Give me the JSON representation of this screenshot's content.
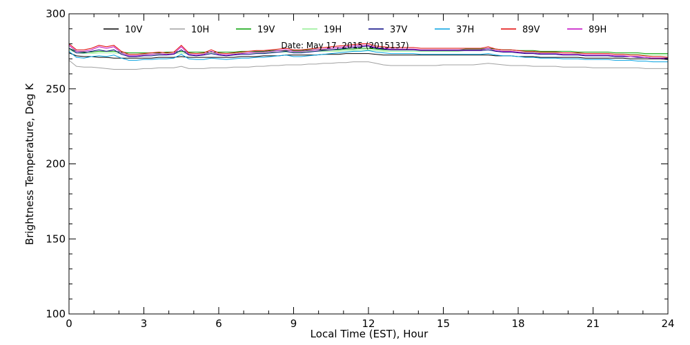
{
  "chart_data": {
    "type": "line",
    "annotation": "Date: May 17, 2015 (2015137)",
    "xlabel": "Local Time (EST), Hour",
    "ylabel": "Brightness Temperature, Deg K",
    "xlim": [
      0,
      24
    ],
    "ylim": [
      100,
      300
    ],
    "xticks": [
      0,
      3,
      6,
      9,
      12,
      15,
      18,
      21,
      24
    ],
    "yticks": [
      100,
      150,
      200,
      250,
      300
    ],
    "grid": false,
    "legend_position": "top",
    "x": [
      0,
      0.3,
      0.6,
      0.9,
      1.2,
      1.5,
      1.8,
      2.1,
      2.4,
      2.7,
      3.0,
      3.3,
      3.6,
      3.9,
      4.2,
      4.5,
      4.8,
      5.1,
      5.4,
      5.7,
      6.0,
      6.3,
      6.6,
      6.9,
      7.2,
      7.5,
      7.8,
      8.1,
      8.4,
      8.7,
      9.0,
      9.3,
      9.6,
      9.9,
      10.2,
      10.5,
      10.8,
      11.1,
      11.4,
      11.7,
      12.0,
      12.3,
      12.6,
      12.9,
      13.2,
      13.5,
      13.8,
      14.1,
      14.4,
      14.7,
      15.0,
      15.3,
      15.6,
      15.9,
      16.2,
      16.5,
      16.8,
      17.1,
      17.4,
      17.7,
      18.0,
      18.3,
      18.6,
      18.9,
      19.2,
      19.5,
      19.8,
      20.1,
      20.4,
      20.7,
      21.0,
      21.3,
      21.6,
      21.9,
      22.2,
      22.5,
      22.8,
      23.1,
      23.4,
      23.7,
      24.0
    ],
    "series": [
      {
        "name": "10V",
        "color": "#000000",
        "values": [
          274,
          272,
          271.5,
          271.5,
          271,
          271,
          270.5,
          270.5,
          270.5,
          270.5,
          270.5,
          270.5,
          271,
          271,
          271,
          271.5,
          271,
          271,
          271,
          271,
          271,
          271,
          271,
          271.5,
          271.5,
          271.5,
          272,
          272,
          272,
          272.5,
          272.5,
          272.5,
          272.5,
          272.5,
          273,
          273,
          273,
          273.5,
          273.5,
          273.5,
          273.5,
          273,
          272.5,
          272.5,
          272.5,
          272.5,
          272.5,
          272.5,
          272.5,
          272.5,
          272.5,
          272.5,
          272.5,
          272.5,
          272.5,
          272.5,
          272.5,
          272,
          272,
          272,
          271.5,
          271.5,
          271.5,
          271,
          271,
          271,
          271,
          271,
          271,
          270.5,
          270.5,
          270.5,
          270.5,
          270.5,
          270.5,
          270,
          270,
          270,
          270,
          270,
          269.5
        ]
      },
      {
        "name": "10H",
        "color": "#a0a0a0",
        "values": [
          269,
          265,
          264.5,
          264.5,
          264,
          263.5,
          263,
          263,
          263,
          263,
          263.5,
          263.5,
          264,
          264,
          264,
          265,
          263.5,
          263.5,
          263.5,
          264,
          264,
          264,
          264.5,
          264.5,
          264.5,
          265,
          265,
          265.5,
          265.5,
          266,
          266,
          266,
          266.5,
          266.5,
          267,
          267,
          267.5,
          267.5,
          268,
          268,
          268,
          267,
          266,
          265.5,
          265.5,
          265.5,
          265.5,
          265.5,
          265.5,
          265.5,
          266,
          266,
          266,
          266,
          266,
          266.5,
          267,
          266.5,
          266,
          265.5,
          265.5,
          265.5,
          265,
          265,
          265,
          265,
          264.5,
          264.5,
          264.5,
          264.5,
          264,
          264,
          264,
          264,
          264,
          264,
          264,
          263.5,
          263.5,
          263.5,
          263.5
        ]
      },
      {
        "name": "19V",
        "color": "#00a000",
        "values": [
          277,
          275,
          274.5,
          274.5,
          275,
          275,
          275,
          274.5,
          274,
          274,
          274,
          274,
          274,
          274.5,
          274.5,
          275,
          274.5,
          274.5,
          274.5,
          274.5,
          274.5,
          274.5,
          274.5,
          275,
          275,
          275,
          275,
          275.5,
          275.5,
          275.5,
          275.5,
          275.5,
          276,
          276,
          276,
          276,
          276,
          276.5,
          276.5,
          277,
          277,
          276.5,
          276,
          276,
          276,
          276,
          276,
          276,
          276,
          276,
          276,
          276,
          276,
          276.5,
          276.5,
          276.5,
          277,
          276.5,
          276,
          276,
          275.5,
          275.5,
          275.5,
          275,
          275,
          275,
          275,
          275,
          274.5,
          274.5,
          274.5,
          274.5,
          274.5,
          274,
          274,
          274,
          274,
          273.5,
          273.5,
          273.5,
          273.5
        ]
      },
      {
        "name": "19H",
        "color": "#90ee90",
        "values": [
          276,
          274,
          273.5,
          273.5,
          274,
          274,
          274,
          273.5,
          273,
          273,
          273,
          273,
          273,
          273.5,
          273.5,
          274,
          273.5,
          273.5,
          273.5,
          273.5,
          273.5,
          273.5,
          273.5,
          274,
          274,
          274,
          274,
          274.5,
          274.5,
          274.5,
          274.5,
          274.5,
          275,
          275,
          275,
          275,
          275,
          275.5,
          275.5,
          276,
          276,
          275.5,
          275,
          275,
          275,
          275,
          275,
          275,
          275,
          275,
          275,
          275,
          275,
          275.5,
          275.5,
          275.5,
          276,
          275.5,
          275,
          275,
          274.5,
          274.5,
          274.5,
          274,
          274,
          274,
          274,
          274,
          273.5,
          273.5,
          273.5,
          273.5,
          273.5,
          273,
          273,
          273,
          273,
          272.5,
          272.5,
          272.5,
          272.5
        ]
      },
      {
        "name": "37V",
        "color": "#000080",
        "values": [
          277,
          274,
          274,
          275,
          276,
          275,
          276,
          273,
          271.5,
          271.5,
          272,
          272,
          272.5,
          272.5,
          273,
          276,
          272.5,
          272,
          272.5,
          273.5,
          272.5,
          272,
          272.5,
          273,
          273,
          273.5,
          273.5,
          274,
          274.5,
          275,
          274,
          274,
          274.5,
          275,
          275.5,
          276,
          276.5,
          277,
          277.5,
          278,
          278.5,
          277,
          276.5,
          276,
          276,
          276,
          276,
          275.5,
          275.5,
          275.5,
          275.5,
          275.5,
          275.5,
          275.5,
          275.5,
          275.5,
          276,
          275,
          274.5,
          274.5,
          274,
          273.5,
          273.5,
          273,
          273,
          273,
          272.5,
          272.5,
          272.5,
          272,
          272,
          272,
          272,
          271.5,
          271.5,
          271.5,
          271,
          271,
          270.5,
          270.5,
          270.5
        ]
      },
      {
        "name": "37H",
        "color": "#00a0e0",
        "values": [
          275,
          271,
          270.5,
          271.5,
          272,
          271.5,
          272.5,
          270.5,
          269,
          269,
          269.5,
          269.5,
          270,
          270,
          270.5,
          273,
          270,
          269.5,
          269.5,
          270.5,
          270,
          269.5,
          270,
          270.5,
          270.5,
          271,
          271,
          271.5,
          272,
          272.5,
          271.5,
          271.5,
          272,
          272.5,
          273,
          273.5,
          274,
          274.5,
          275,
          275,
          275.5,
          274.5,
          274,
          273.5,
          273.5,
          273.5,
          273.5,
          273,
          273,
          273,
          273,
          273,
          273,
          273,
          273,
          273,
          273.5,
          272.5,
          272,
          272,
          271.5,
          271,
          271,
          270.5,
          270.5,
          270.5,
          270,
          270,
          270,
          269.5,
          269.5,
          269.5,
          269.5,
          269,
          269,
          269,
          268.5,
          268.5,
          268,
          268,
          268
        ]
      },
      {
        "name": "89V",
        "color": "#e00000",
        "values": [
          280,
          276,
          276,
          277,
          279,
          278,
          279,
          275,
          273,
          273,
          273.5,
          274,
          274.5,
          274,
          274.5,
          279,
          274,
          273.5,
          274,
          276,
          274,
          273.5,
          274,
          274.5,
          275,
          275.5,
          275.5,
          276,
          276.5,
          277,
          276,
          276,
          276.5,
          277,
          277.5,
          278,
          278.5,
          279,
          279.5,
          280,
          280,
          278.5,
          278,
          277.5,
          277.5,
          277.5,
          277.5,
          277,
          277,
          277,
          277,
          277,
          277,
          277,
          277,
          277,
          278,
          276.5,
          276,
          276,
          275.5,
          275,
          275,
          274.5,
          274.5,
          274.5,
          274,
          274,
          274,
          273.5,
          273.5,
          273.5,
          273.5,
          273,
          273,
          272.5,
          272.5,
          272,
          271.5,
          271.5,
          271
        ]
      },
      {
        "name": "89H",
        "color": "#c000c0",
        "values": [
          279,
          275,
          275,
          276,
          278,
          277,
          278,
          274,
          272,
          272,
          272.5,
          273,
          273.5,
          273,
          273.5,
          278,
          273,
          272.5,
          273,
          275,
          273,
          272.5,
          273,
          273.5,
          274,
          274.5,
          274.5,
          275,
          275.5,
          276,
          275,
          275,
          275.5,
          276,
          276.5,
          277,
          277.5,
          278,
          278.5,
          279,
          279,
          277.5,
          277,
          276.5,
          276.5,
          276.5,
          276.5,
          276,
          276,
          276,
          276,
          276,
          276,
          276,
          276,
          276,
          277,
          275.5,
          275,
          275,
          274.5,
          274,
          274,
          273.5,
          273.5,
          273.5,
          273,
          273,
          273,
          272.5,
          272.5,
          272.5,
          272.5,
          272,
          272,
          271.5,
          271.5,
          271,
          270.5,
          270.5,
          270
        ]
      }
    ]
  }
}
